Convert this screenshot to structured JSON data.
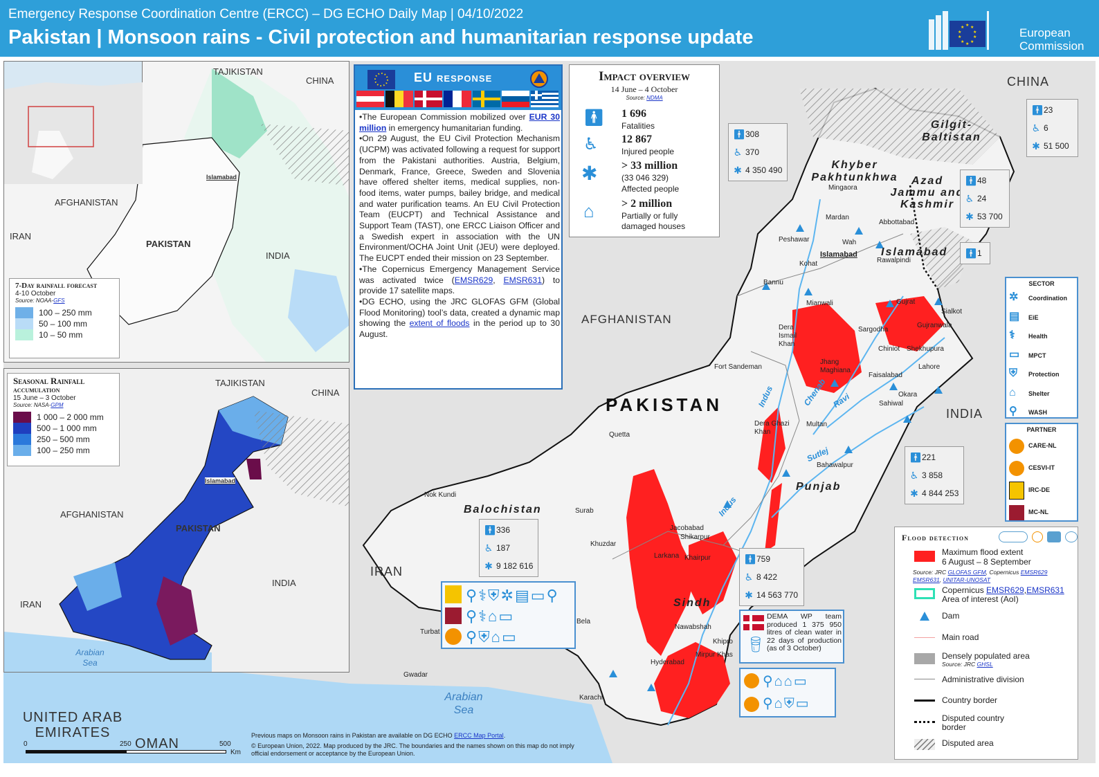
{
  "header": {
    "supertitle": "Emergency Response Coordination Centre (ERCC) – DG ECHO Daily Map | 04/10/2022",
    "title": "Pakistan | Monsoon rains - Civil protection and humanitarian response update",
    "logo_text": "European Commission"
  },
  "colors": {
    "header_bg": "#2e9fd9",
    "flood": "#ff2020",
    "accent_blue": "#2a8fd8",
    "eu_blue": "#1a3d9a"
  },
  "inset_locator": {
    "labels": [
      "TAJIKISTAN",
      "CHINA",
      "AFGHANISTAN",
      "IRAN",
      "PAKISTAN",
      "INDIA",
      "Islamabad"
    ]
  },
  "forecast_map": {
    "title": "7-Day rainfall forecast",
    "period": "4-10 October",
    "source_prefix": "Source:",
    "source_agency": "NOAA-",
    "source_link": "GFS",
    "legend": [
      {
        "label": "100 – 250 mm",
        "color": "#6fb0e8"
      },
      {
        "label": "50 – 100 mm",
        "color": "#b9dcf7"
      },
      {
        "label": "10 – 50 mm",
        "color": "#b9f1dc"
      }
    ]
  },
  "seasonal_map": {
    "title": "Seasonal Rainfall",
    "subtitle": "accumulation",
    "period": "15 June – 3 October",
    "source_prefix": "Source:",
    "source_agency": "NASA-",
    "source_link": "GPM",
    "legend": [
      {
        "label": "1 000 – 2 000 mm",
        "color": "#6a0d4a"
      },
      {
        "label": "500 – 1 000 mm",
        "color": "#1f3fbf"
      },
      {
        "label": "250 – 500 mm",
        "color": "#2b79db"
      },
      {
        "label": "100 – 250 mm",
        "color": "#6aaeea"
      }
    ],
    "labels": [
      "TAJIKISTAN",
      "CHINA",
      "Islamabad",
      "AFGHANISTAN",
      "PAKISTAN",
      "INDIA",
      "IRAN",
      "Arabian Sea"
    ]
  },
  "eu_response": {
    "title": "EU response",
    "flags": [
      "Austria",
      "Belgium",
      "Denmark",
      "France",
      "Sweden",
      "Slovenia",
      "Greece"
    ],
    "p1_pre": "•The European Commission mobilized over ",
    "p1_link": "EUR 30 million",
    "p1_post": " in emergency humanitarian funding.",
    "p2": "•On 29 August, the EU Civil Protection Mechanism (UCPM) was activated following a request for support from the Pakistani authorities. Austria, Belgium, Denmark, France, Greece, Sweden and Slovenia have offered shelter items, medical supplies, non-food items, water pumps, bailey bridge, and medical and water purification teams. An EU Civil Protection Team (EUCPT) and Technical Assistance and Support Team (TAST), one ERCC Liaison Officer and a Swedish expert in association with the UN Environment/OCHA Joint Unit (JEU) were deployed. The EUCPT ended their mission on 23 September.",
    "p3_pre": "•The Copernicus Emergency Management Service was activated twice (",
    "p3_link1": "EMSR629",
    "p3_mid": ", ",
    "p3_link2": "EMSR631",
    "p3_post": ") to provide 17 satellite maps.",
    "p4_pre": "•DG ECHO, using the JRC GLOFAS GFM (Global Flood Monitoring) tool’s data, created a dynamic map showing the ",
    "p4_link": "extent of floods",
    "p4_post": " in the period up to 30 August."
  },
  "impact": {
    "title": "Impact overview",
    "period": "14 June – 4 October",
    "source_prefix": "Source:",
    "source_link": "NDMA",
    "items": [
      {
        "value": "1 696",
        "label": "Fatalities",
        "icon": "person-icon"
      },
      {
        "value": "12 867",
        "label": "Injured  people",
        "icon": "injured-icon"
      },
      {
        "value": "> 33 million",
        "sub": "(33 046 329)",
        "label": "Affected people",
        "icon": "affected-icon"
      },
      {
        "value": "> 2 million",
        "label": "Partially or fully damaged houses",
        "icon": "house-icon"
      }
    ]
  },
  "main_map": {
    "countries": [
      "AFGHANISTAN",
      "IRAN",
      "INDIA",
      "CHINA",
      "PAKISTAN",
      "UNITED ARAB EMIRATES",
      "OMAN"
    ],
    "regions": [
      "Khyber Pakhtunkhwa",
      "Gilgit-Baltistan",
      "Azad Jammu and Kashmir",
      "Islamabad",
      "Punjab",
      "Balochistan",
      "Sindh"
    ],
    "cities": [
      "Mingaora",
      "Mardan",
      "Abbottabad",
      "Peshawar",
      "Wah",
      "Kohat",
      "Islamabad",
      "Rawalpindi",
      "Bannu",
      "Mianwali",
      "Gujrat",
      "Sialkot",
      "Gujranwala",
      "Sargodha",
      "Dera Ismail Khan",
      "Chiniot",
      "Shekhupura",
      "Jhang Maghiana",
      "Faisalabad",
      "Lahore",
      "Fort Sandeman",
      "Okara",
      "Sahiwal",
      "Dera Ghazi Khan",
      "Multan",
      "Quetta",
      "Bahawalpur",
      "Nok Kundi",
      "Surab",
      "Khuzdar",
      "Jacobabad",
      "Shikarpur",
      "Larkana",
      "Khairpur",
      "Bela",
      "Nawabshah",
      "Khipro",
      "Turbat",
      "Mirpur Khas",
      "Hyderabad",
      "Gwadar",
      "Karachi"
    ],
    "rivers": [
      "Indus",
      "Chenab",
      "Ravi",
      "Sutlej",
      "Indus"
    ],
    "seas": [
      "Arabian Sea"
    ],
    "scale": [
      "0",
      "250",
      "500",
      "Km"
    ]
  },
  "stats": {
    "khyber": {
      "deaths": "308",
      "injured": "370",
      "affected": "4 350 490"
    },
    "gilgit": {
      "deaths": "23",
      "injured": "6",
      "affected": "51 500"
    },
    "ajk": {
      "deaths": "48",
      "injured": "24",
      "affected": "53 700"
    },
    "islamabad": {
      "deaths": "1"
    },
    "punjab": {
      "deaths": "221",
      "injured": "3 858",
      "affected": "4 844 253"
    },
    "balochistan": {
      "deaths": "336",
      "injured": "187",
      "affected": "9 182 616"
    },
    "sindh": {
      "deaths": "759",
      "injured": "8 422",
      "affected": "14 563 770"
    }
  },
  "dema_note": "DEMA WP team produced 1 375 950 litres of clean water in 22 days of production (as of 3 October)",
  "sector_legend": {
    "title": "SECTOR",
    "items": [
      {
        "label": "Coordination",
        "icon": "coordination-icon"
      },
      {
        "label": "EiE",
        "icon": "education-icon"
      },
      {
        "label": "Health",
        "icon": "health-icon"
      },
      {
        "label": "MPCT",
        "icon": "cash-icon"
      },
      {
        "label": "Protection",
        "icon": "protection-icon"
      },
      {
        "label": "Shelter",
        "icon": "shelter-icon"
      },
      {
        "label": "WASH",
        "icon": "wash-icon"
      }
    ]
  },
  "partner_legend": {
    "title": "PARTNER",
    "items": [
      {
        "label": "CARE-NL",
        "icon": "care-logo",
        "color": "#f39200"
      },
      {
        "label": "CESVI-IT",
        "icon": "cesvi-logo",
        "color": "#f39200"
      },
      {
        "label": "IRC-DE",
        "icon": "irc-logo",
        "color": "#f5c400"
      },
      {
        "label": "MC-NL",
        "icon": "mercy-corps-logo",
        "color": "#9b1b30"
      }
    ]
  },
  "flood_legend": {
    "title": "Flood detection",
    "flood_extent": "Maximum flood extent",
    "flood_period": "6 August – 8 September",
    "flood_source_pre": "Source: JRC ",
    "flood_source_link1": "GLOFAS GFM",
    "flood_source_mid": ", Copernicus ",
    "flood_source_link2": "EMSR629",
    "flood_source_sep": ", ",
    "flood_source_link3": "EMSR631",
    "flood_source_link4": "UNITAR-UNOSAT",
    "aoi_pre": "Copernicus ",
    "aoi_link1": "EMSR629",
    "aoi_link2": "EMSR631",
    "aoi_post": "Area of interest (AoI)",
    "dam": "Dam",
    "main_road": "Main road",
    "dense_area": "Densely populated area",
    "dense_source_pre": "Source: JRC ",
    "dense_source_link": "GHSL",
    "admin": "Administrative division",
    "border": "Country border",
    "disputed_border": "Disputed country border",
    "disputed_area": "Disputed area"
  },
  "footer": {
    "line1_pre": "Previous maps on Monsoon rains in Pakistan are available on DG ECHO ",
    "line1_link": "ERCC Map Portal",
    "line2": "© European Union, 2022. Map produced by the JRC. The boundaries and the names shown on this map do not imply official endorsement or acceptance by the European Union."
  }
}
